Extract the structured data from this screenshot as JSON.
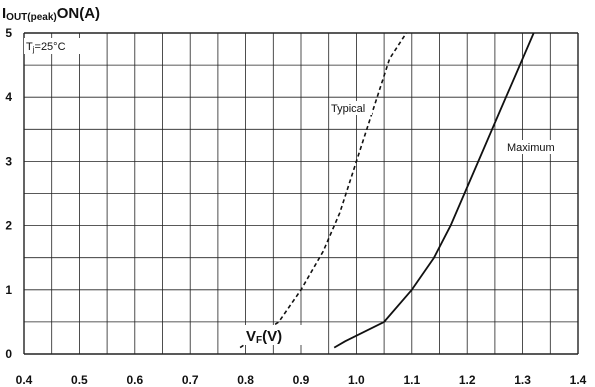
{
  "chart_data": {
    "type": "line",
    "ylabel_main": "I",
    "ylabel_sub": "OUT(peak)",
    "ylabel_tail": "ON(A)",
    "xlabel_main": "V",
    "xlabel_sub": "F",
    "xlabel_tail": "(V)",
    "condition_main": "T",
    "condition_sub": "j",
    "condition_tail": "=25°C",
    "xlim": [
      0.4,
      1.4
    ],
    "ylim": [
      0,
      5
    ],
    "x_ticks": [
      "0.4",
      "0.5",
      "0.6",
      "0.7",
      "0.8",
      "0.9",
      "1.0",
      "1.1",
      "1.2",
      "1.3",
      "1.4"
    ],
    "y_ticks": [
      "0",
      "1",
      "2",
      "3",
      "4",
      "5"
    ],
    "grid": true,
    "series": [
      {
        "name": "Typical",
        "style": "dashed",
        "color": "#111111",
        "x": [
          0.79,
          0.86,
          0.9,
          0.94,
          0.97,
          1.0,
          1.03,
          1.06,
          1.09
        ],
        "y": [
          0.1,
          0.5,
          1.0,
          1.6,
          2.2,
          3.0,
          3.8,
          4.6,
          5.0
        ]
      },
      {
        "name": "Maximum",
        "style": "solid",
        "color": "#111111",
        "x": [
          0.96,
          0.98,
          1.05,
          1.1,
          1.14,
          1.17,
          1.2,
          1.23,
          1.26,
          1.29,
          1.32
        ],
        "y": [
          0.1,
          0.2,
          0.5,
          1.0,
          1.5,
          2.0,
          2.6,
          3.2,
          3.8,
          4.4,
          5.0
        ]
      }
    ]
  }
}
